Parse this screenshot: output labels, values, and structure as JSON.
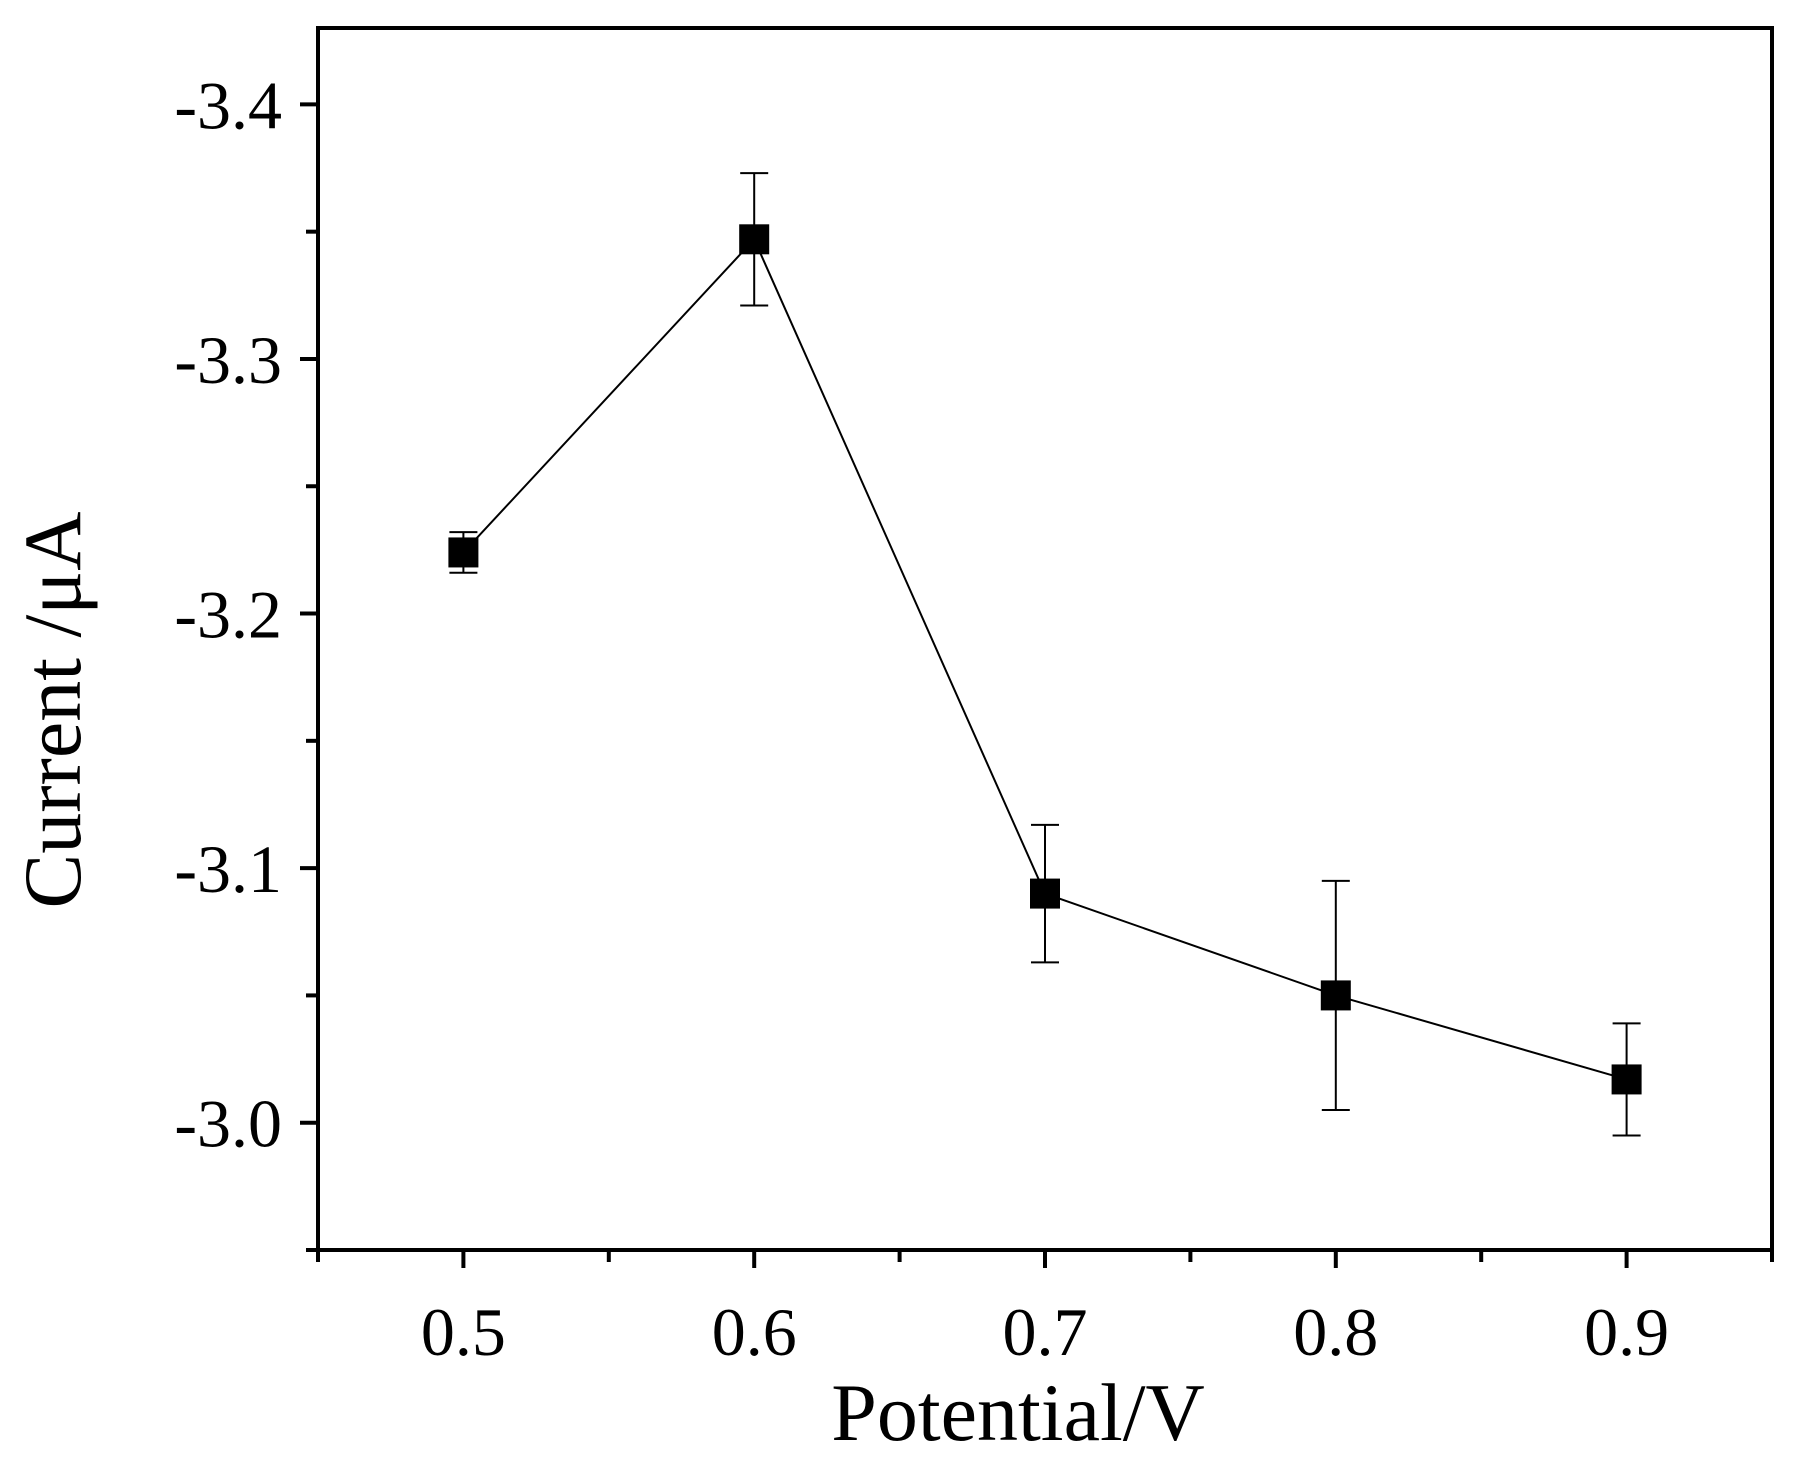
{
  "chart_data": {
    "type": "line",
    "title": "",
    "xlabel": "Potential/V",
    "ylabel": "Current /μA",
    "xlim": [
      0.45,
      0.95
    ],
    "ylim": [
      -2.95,
      -3.43
    ],
    "x_ticks": [
      0.5,
      0.6,
      0.7,
      0.8,
      0.9
    ],
    "x_tick_labels": [
      "0.5",
      "0.6",
      "0.7",
      "0.8",
      "0.9"
    ],
    "x_minor_ticks": [
      0.45,
      0.55,
      0.65,
      0.75,
      0.85,
      0.95
    ],
    "y_ticks": [
      -3.0,
      -3.1,
      -3.2,
      -3.3,
      -3.4
    ],
    "y_tick_labels": [
      "-3.0",
      "-3.1",
      "-3.2",
      "-3.3",
      "-3.4"
    ],
    "y_minor_ticks": [
      -2.95,
      -3.05,
      -3.15,
      -3.25,
      -3.35
    ],
    "grid": false,
    "legend": null,
    "marker": "square",
    "series": [
      {
        "name": "Current",
        "x": [
          0.5,
          0.6,
          0.7,
          0.8,
          0.9
        ],
        "y": [
          -3.224,
          -3.347,
          -3.09,
          -3.05,
          -3.017
        ],
        "err": [
          0.008,
          0.026,
          0.027,
          0.045,
          0.022
        ]
      }
    ],
    "colors": {
      "line": "#000000",
      "marker": "#000000",
      "axis": "#000000"
    }
  }
}
